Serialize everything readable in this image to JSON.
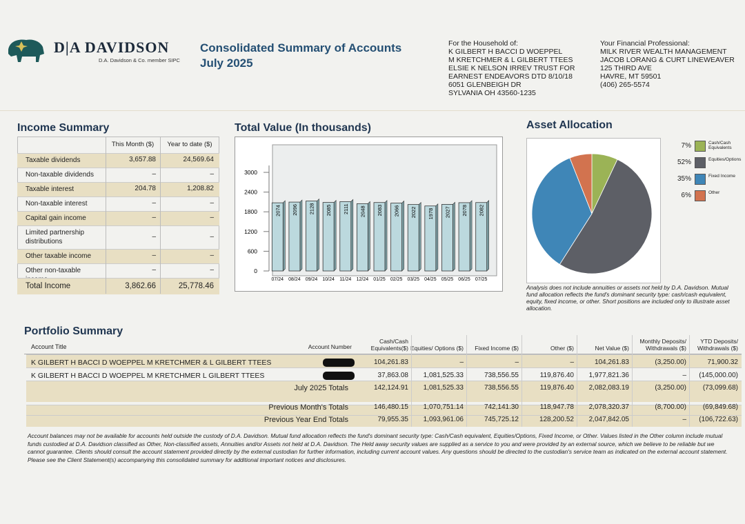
{
  "header": {
    "brand": "D|A DAVIDSON",
    "member": "D.A. Davidson & Co. member SIPC",
    "title": "Consolidated Summary of Accounts",
    "period": "July 2025",
    "household_label": "For the Household of:",
    "household_lines": [
      "K GILBERT H BACCI D WOEPPEL",
      "M KRETCHMER & L GILBERT TTEES",
      "ELSIE K NELSON IRREV TRUST FOR",
      "EARNEST ENDEAVORS DTD 8/10/18",
      "6051 GLENBEIGH DR",
      "SYLVANIA OH  43560-1235"
    ],
    "professional_label": "Your Financial Professional:",
    "professional_lines": [
      "MILK RIVER WEALTH MANAGEMENT",
      "JACOB LORANG & CURT LINEWEAVER",
      "125 THIRD AVE",
      "HAVRE, MT 59501",
      "(406) 265-5574"
    ]
  },
  "income_summary": {
    "title": "Income Summary",
    "columns": [
      "This Month ($)",
      "Year to date ($)"
    ],
    "rows": [
      {
        "label": "Taxable dividends",
        "this_month": "3,657.88",
        "ytd": "24,569.64"
      },
      {
        "label": "Non-taxable dividends",
        "this_month": "–",
        "ytd": "–"
      },
      {
        "label": "Taxable interest",
        "this_month": "204.78",
        "ytd": "1,208.82"
      },
      {
        "label": "Non-taxable interest",
        "this_month": "–",
        "ytd": "–"
      },
      {
        "label": "Capital gain income",
        "this_month": "–",
        "ytd": "–"
      },
      {
        "label": "Limited partnership distributions",
        "this_month": "–",
        "ytd": "–"
      },
      {
        "label": "Other taxable income",
        "this_month": "–",
        "ytd": "–"
      },
      {
        "label": "Other non-taxable income",
        "this_month": "–",
        "ytd": "–"
      },
      {
        "label": "Total Income",
        "this_month": "3,862.66",
        "ytd": "25,778.46"
      }
    ]
  },
  "chart_data": [
    {
      "type": "bar",
      "title": "Total Value (In thousands)",
      "categories": [
        "07/24",
        "08/24",
        "09/24",
        "10/24",
        "11/24",
        "12/24",
        "01/25",
        "02/25",
        "03/25",
        "04/25",
        "05/25",
        "06/25",
        "07/25"
      ],
      "values": [
        2074,
        2096,
        2128,
        2085,
        2111,
        2048,
        2083,
        2066,
        2022,
        1978,
        2027,
        2078,
        2082
      ],
      "color": "#bcd9de",
      "ylim": [
        0,
        3000
      ],
      "yticks": [
        0,
        600,
        1200,
        1800,
        2400,
        3000
      ],
      "grid": false
    },
    {
      "type": "pie",
      "title": "Asset Allocation",
      "categories": [
        "Cash/Cash Equivalents",
        "Equities/Options",
        "Fixed Income",
        "Other"
      ],
      "values": [
        7,
        52,
        35,
        6
      ],
      "value_labels": [
        "7%",
        "52%",
        "35%",
        "6%"
      ],
      "colors": [
        "#9bb356",
        "#5d5f66",
        "#3f86b7",
        "#d2734f"
      ],
      "note": "Analysis does not include annuities or assets not held by D.A. Davidson. Mutual fund allocation reflects the fund's dominant security type: cash/cash equivalent, equity, fixed income, or other. Short positions are included only to illustrate asset allocation."
    }
  ],
  "portfolio_summary": {
    "title": "Portfolio Summary",
    "columns": [
      "Account Title",
      "Account Number",
      "Cash/Cash Equivalents($)",
      "Equities/ Options ($)",
      "Fixed Income ($)",
      "Other ($)",
      "Net Value ($)",
      "Monthly Deposits/ Withdrawals ($)",
      "YTD Deposits/ Withdrawals ($)"
    ],
    "rows": [
      [
        "K GILBERT H BACCI D WOEPPEL M KRETCHMER & L GILBERT TTEES",
        "104,261.83",
        "–",
        "–",
        "–",
        "104,261.83",
        "(3,250.00)",
        "71,900.32"
      ],
      [
        "K GILBERT H BACCI D WOEPPEL M KRETCHMER L GILBERT TTEES",
        "37,863.08",
        "1,081,525.33",
        "738,556.55",
        "119,876.40",
        "1,977,821.36",
        "–",
        "(145,000.00)"
      ]
    ],
    "totals": [
      [
        "July 2025 Totals",
        "142,124.91",
        "1,081,525.33",
        "738,556.55",
        "119,876.40",
        "2,082,083.19",
        "(3,250.00)",
        "(73,099.68)"
      ],
      [
        "Previous Month's Totals",
        "146,480.15",
        "1,070,751.14",
        "742,141.30",
        "118,947.78",
        "2,078,320.37",
        "(8,700.00)",
        "(69,849.68)"
      ],
      [
        "Previous Year End Totals",
        "79,955.35",
        "1,093,961.06",
        "745,725.12",
        "128,200.52",
        "2,047,842.05",
        "–",
        "(106,722.63)"
      ]
    ]
  },
  "footer": "Account balances may not be available for accounts held outside the custody of D.A. Davidson. Mutual fund allocation reflects the fund's dominant security type: Cash/Cash equivalent, Equities/Options, Fixed Income, or Other. Values listed in the Other column include mutual funds custodied at D.A. Davidson classified as Other, Non-classified assets, Annuities and/or Assets not held at D.A. Davidson. The Held away security values are supplied as a service to you and were provided by an external source, which we believe to be reliable but we cannot guarantee. Clients should consult the account statement provided directly by the external custodian for further information, including current account values. Any questions should be directed to the custodian's service team as indicated on the external account statement. Please see the Client Statement(s) accompanying this consolidated summary for additional important notices and disclosures."
}
